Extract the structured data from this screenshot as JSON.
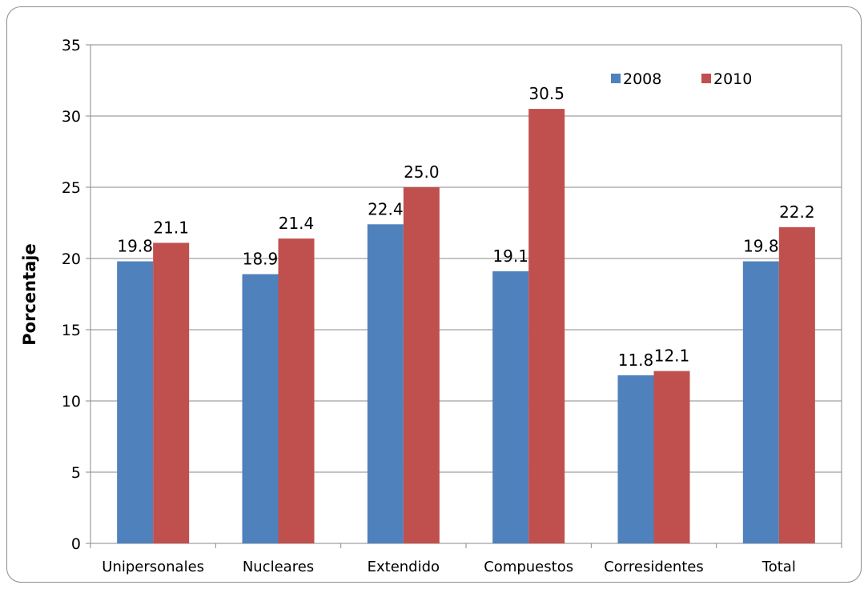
{
  "chart_data": {
    "type": "bar",
    "ylabel": "Porcentaje",
    "xlabel": "",
    "ylim": [
      0,
      35
    ],
    "yticks": [
      0,
      5,
      10,
      15,
      20,
      25,
      30,
      35
    ],
    "grid": true,
    "legend_position": "top-right",
    "categories": [
      "Unipersonales",
      "Nucleares",
      "Extendido",
      "Compuestos",
      "Corresidentes",
      "Total"
    ],
    "series": [
      {
        "name": "2008",
        "color": "#4f81bd",
        "values": [
          19.8,
          18.9,
          22.4,
          19.1,
          11.8,
          19.8
        ]
      },
      {
        "name": "2010",
        "color": "#c0504d",
        "values": [
          21.1,
          21.4,
          25.0,
          30.5,
          12.1,
          22.2
        ]
      }
    ]
  }
}
